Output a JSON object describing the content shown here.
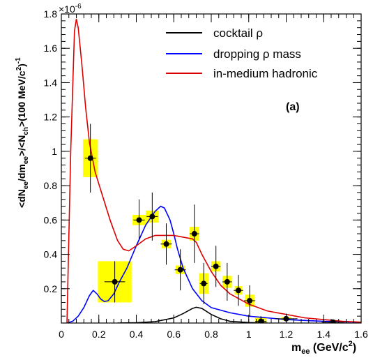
{
  "chart_data": {
    "type": "line",
    "panel_label": "(a)",
    "xlabel": "m",
    "xlabel_sub": "ee",
    "xlabel_unit": " (GeV/c",
    "xlabel_unit_sup": "2",
    "xlabel_unit_end": ")",
    "ylabel_parts": [
      "<dN",
      "ee",
      "/dm",
      "ee",
      ">/<N",
      "ch",
      ">(100 MeV/c",
      "2",
      ")",
      "-1"
    ],
    "yscale_label": "×10",
    "yscale_exponent": "-6",
    "xlim": [
      0,
      1.6
    ],
    "ylim": [
      0,
      1.8
    ],
    "x_ticks": [
      0,
      0.2,
      0.4,
      0.6,
      0.8,
      1,
      1.2,
      1.4,
      1.6
    ],
    "x_tick_labels": [
      "0",
      "0.2",
      "0.4",
      "0.6",
      "0.8",
      "1",
      "1.2",
      "1.4",
      "1.6"
    ],
    "y_ticks": [
      0.2,
      0.4,
      0.6,
      0.8,
      1,
      1.2,
      1.4,
      1.6,
      1.8
    ],
    "y_tick_labels": [
      "0.2",
      "0.4",
      "0.6",
      "0.8",
      "1",
      "1.2",
      "1.4",
      "1.6",
      "1.8"
    ],
    "series": [
      {
        "name": "cocktail ρ",
        "color": "#000000",
        "x": [
          0.3,
          0.4,
          0.5,
          0.6,
          0.65,
          0.7,
          0.72,
          0.75,
          0.8,
          0.85,
          0.9,
          1.0,
          1.1
        ],
        "y": [
          0.0,
          0.002,
          0.008,
          0.03,
          0.055,
          0.085,
          0.092,
          0.085,
          0.05,
          0.025,
          0.01,
          0.003,
          0.0
        ]
      },
      {
        "name": "dropping ρ mass",
        "color": "#0000ff",
        "x": [
          0.03,
          0.06,
          0.09,
          0.12,
          0.15,
          0.17,
          0.19,
          0.21,
          0.23,
          0.25,
          0.28,
          0.31,
          0.35,
          0.4,
          0.45,
          0.5,
          0.53,
          0.55,
          0.58,
          0.6,
          0.62,
          0.65,
          0.7,
          0.75,
          0.8,
          0.9,
          1.0,
          1.1,
          1.2,
          1.3,
          1.4,
          1.5,
          1.6
        ],
        "y": [
          0.0,
          0.01,
          0.04,
          0.09,
          0.16,
          0.19,
          0.17,
          0.14,
          0.125,
          0.13,
          0.17,
          0.24,
          0.32,
          0.45,
          0.57,
          0.65,
          0.68,
          0.67,
          0.6,
          0.52,
          0.43,
          0.32,
          0.2,
          0.13,
          0.09,
          0.06,
          0.04,
          0.03,
          0.02,
          0.015,
          0.01,
          0.007,
          0.005
        ]
      },
      {
        "name": "in-medium hadronic",
        "color": "#dd0000",
        "x": [
          0.03,
          0.05,
          0.07,
          0.08,
          0.09,
          0.11,
          0.13,
          0.15,
          0.18,
          0.22,
          0.26,
          0.3,
          0.33,
          0.36,
          0.4,
          0.45,
          0.5,
          0.55,
          0.6,
          0.65,
          0.7,
          0.72,
          0.75,
          0.8,
          0.85,
          0.9,
          0.95,
          1.0,
          1.1,
          1.2,
          1.3,
          1.4,
          1.5,
          1.6
        ],
        "y": [
          0.0,
          1.0,
          1.7,
          1.77,
          1.72,
          1.5,
          1.25,
          1.05,
          0.88,
          0.74,
          0.6,
          0.48,
          0.43,
          0.42,
          0.45,
          0.49,
          0.51,
          0.51,
          0.51,
          0.5,
          0.49,
          0.47,
          0.4,
          0.3,
          0.22,
          0.17,
          0.14,
          0.11,
          0.07,
          0.05,
          0.03,
          0.02,
          0.01,
          0.005
        ]
      }
    ],
    "points": {
      "name": "data",
      "x": [
        0.155,
        0.285,
        0.415,
        0.485,
        0.56,
        0.635,
        0.71,
        0.76,
        0.825,
        0.885,
        0.945,
        1.005,
        1.065,
        1.2,
        1.45
      ],
      "y": [
        0.96,
        0.24,
        0.6,
        0.62,
        0.46,
        0.31,
        0.52,
        0.23,
        0.33,
        0.24,
        0.19,
        0.13,
        0.01,
        0.025,
        0.005
      ],
      "xerr": [
        0.03,
        0.055,
        0.03,
        0.03,
        0.03,
        0.03,
        0.025,
        0.02,
        0.025,
        0.025,
        0.025,
        0.03,
        0.03,
        0.06,
        0.06
      ],
      "yerr_stat": [
        0.2,
        0.12,
        0.12,
        0.14,
        0.12,
        0.12,
        0.17,
        0.12,
        0.12,
        0.11,
        0.09,
        0.09,
        0.03,
        0.03,
        0.01
      ],
      "syst_half_width": [
        0.04,
        0.09,
        0.035,
        0.035,
        0.025,
        0.025,
        0.025,
        0.025,
        0.025,
        0.025,
        0.02,
        0.025,
        0.03,
        0.025,
        0.025
      ],
      "syst_half_height": [
        0.11,
        0.12,
        0.03,
        0.035,
        0.025,
        0.025,
        0.04,
        0.06,
        0.03,
        0.035,
        0.025,
        0.035,
        0.02,
        0.01,
        0.005
      ],
      "syst_color": "#ffff00"
    },
    "legend": {
      "entries": [
        "cocktail ρ",
        "dropping ρ mass",
        "in-medium hadronic"
      ],
      "placement": "top-right"
    },
    "grid": false
  }
}
